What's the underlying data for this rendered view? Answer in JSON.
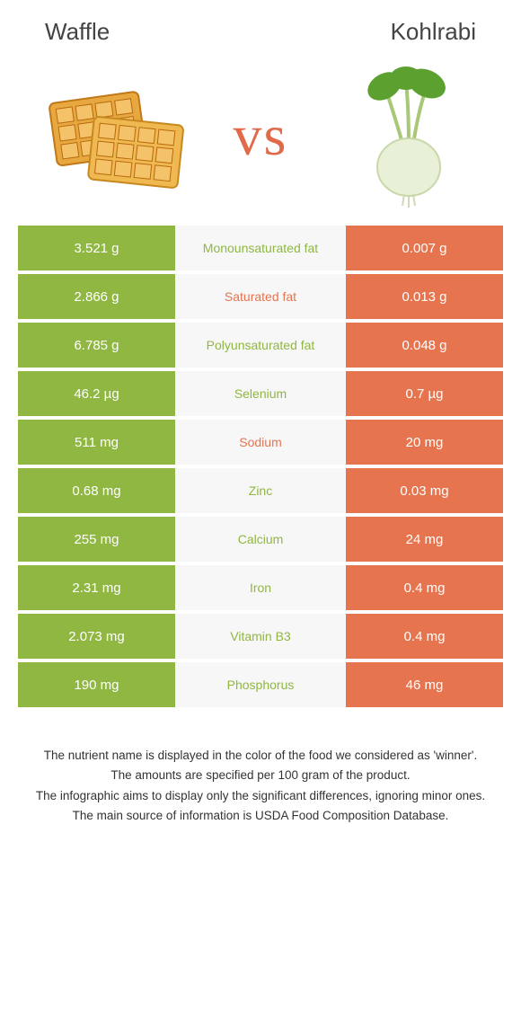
{
  "header": {
    "left_title": "Waffle",
    "right_title": "Kohlrabi",
    "vs_label": "vs"
  },
  "colors": {
    "left_bg": "#8fb741",
    "right_bg": "#e6744f",
    "mid_bg": "#f7f7f7",
    "winner_left_text": "#8fb741",
    "winner_right_text": "#e6744f"
  },
  "rows": [
    {
      "left": "3.521 g",
      "label": "Monounsaturated fat",
      "right": "0.007 g",
      "winner": "left"
    },
    {
      "left": "2.866 g",
      "label": "Saturated fat",
      "right": "0.013 g",
      "winner": "right"
    },
    {
      "left": "6.785 g",
      "label": "Polyunsaturated fat",
      "right": "0.048 g",
      "winner": "left"
    },
    {
      "left": "46.2 µg",
      "label": "Selenium",
      "right": "0.7 µg",
      "winner": "left"
    },
    {
      "left": "511 mg",
      "label": "Sodium",
      "right": "20 mg",
      "winner": "right"
    },
    {
      "left": "0.68 mg",
      "label": "Zinc",
      "right": "0.03 mg",
      "winner": "left"
    },
    {
      "left": "255 mg",
      "label": "Calcium",
      "right": "24 mg",
      "winner": "left"
    },
    {
      "left": "2.31 mg",
      "label": "Iron",
      "right": "0.4 mg",
      "winner": "left"
    },
    {
      "left": "2.073 mg",
      "label": "Vitamin B3",
      "right": "0.4 mg",
      "winner": "left"
    },
    {
      "left": "190 mg",
      "label": "Phosphorus",
      "right": "46 mg",
      "winner": "left"
    }
  ],
  "footer": {
    "line1": "The nutrient name is displayed in the color of the food we considered as 'winner'.",
    "line2": "The amounts are specified per 100 gram of the product.",
    "line3": "The infographic aims to display only the significant differences, ignoring minor ones.",
    "line4": "The main source of information is USDA Food Composition Database."
  }
}
